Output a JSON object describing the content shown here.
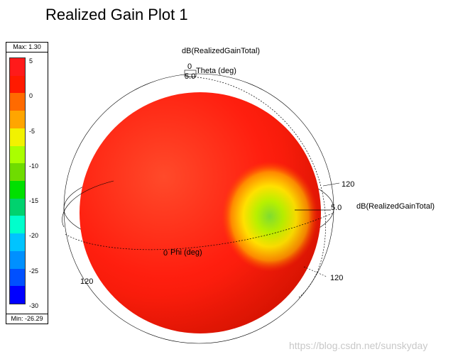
{
  "plot": {
    "title": "Realized Gain Plot 1",
    "quantity_label": "dB(RealizedGainTotal)",
    "side_label": "dB(RealizedGainTotal)"
  },
  "legend": {
    "max_label": "Max: 1.30",
    "min_label": "Min: -26.29",
    "ticks": [
      "5",
      "0",
      "-5",
      "-10",
      "-15",
      "-20",
      "-25",
      "-30"
    ],
    "colors": [
      "#ff1a1a",
      "#ff1a00",
      "#ff6a00",
      "#ffa500",
      "#f2f200",
      "#aaff00",
      "#6fdc00",
      "#00e000",
      "#00d26e",
      "#00ffcc",
      "#00c4ff",
      "#0090ff",
      "#0050ff",
      "#0000ff"
    ]
  },
  "axes": {
    "theta_zero": "0",
    "theta_label": "Theta (deg)",
    "theta_tick_inner": "5.0",
    "phi_zero": "0",
    "phi_label": "Phi (deg)",
    "tick_120_upper": "120",
    "tick_120_lower": "120",
    "tick_120_left": "120",
    "radial_tick": "5.0"
  },
  "chart_data": {
    "type": "3d-polar-surface",
    "title": "Realized Gain Plot 1",
    "quantity": "dB(RealizedGainTotal)",
    "color_scale": {
      "min": -30,
      "max": 5,
      "ticks": [
        5,
        0,
        -5,
        -10,
        -15,
        -20,
        -25,
        -30
      ]
    },
    "max_value": 1.3,
    "min_value": -26.29,
    "axes": [
      "Theta (deg)",
      "Phi (deg)"
    ]
  },
  "watermark": "https://blog.csdn.net/sunskyday"
}
